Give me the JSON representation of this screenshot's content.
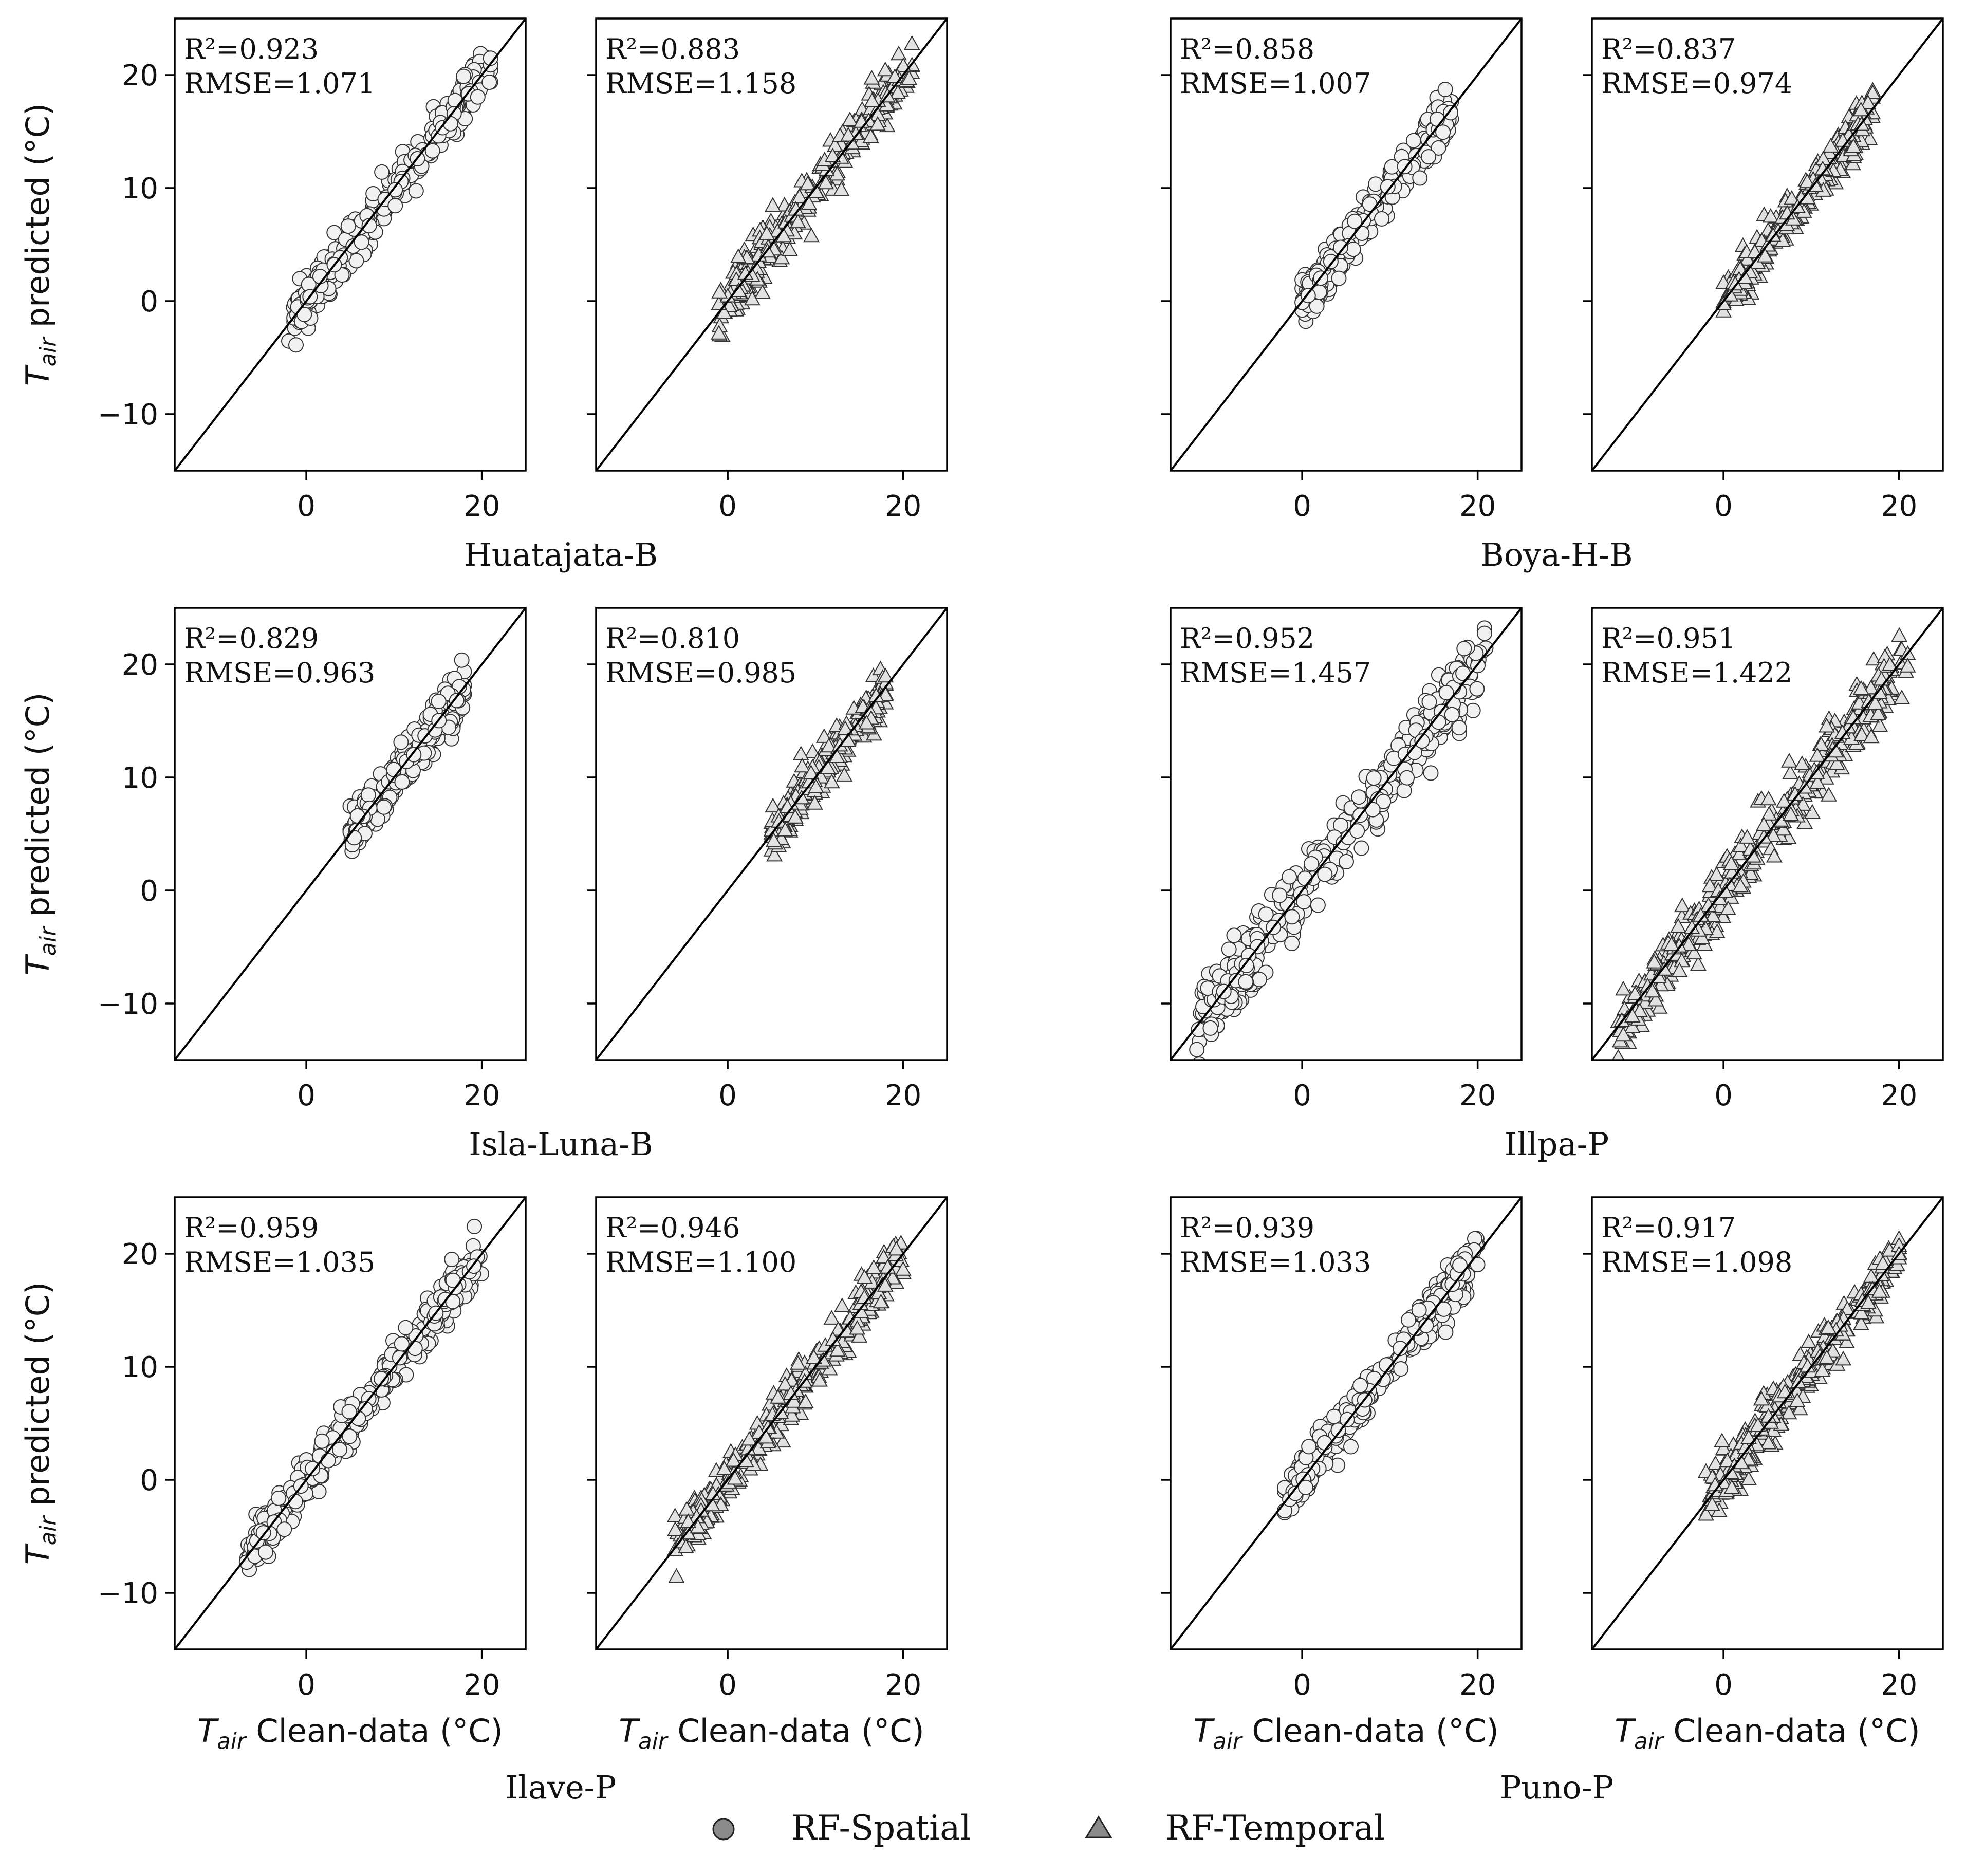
{
  "chart_data": {
    "type": "scatter",
    "axis": {
      "xlim": [
        -15,
        25
      ],
      "ylim": [
        -15,
        25
      ],
      "xticks": [
        0,
        20
      ],
      "yticks": [
        -10,
        0,
        10,
        20
      ],
      "xtick_labels": [
        "0",
        "20"
      ],
      "ytick_labels": [
        "−10",
        "0",
        "10",
        "20"
      ],
      "ylabel_italic": "T",
      "ylabel_sub": "air",
      "ylabel_rest": " predicted (°C)",
      "xlabel_italic": "T",
      "xlabel_sub": "air",
      "xlabel_rest": " Clean-data (°C)",
      "identity_line": "1:1"
    },
    "legend": {
      "position": "bottom-center",
      "entries": [
        {
          "label": "RF-Spatial",
          "marker": "circle"
        },
        {
          "label": "RF-Temporal",
          "marker": "triangle"
        }
      ]
    },
    "stations": [
      {
        "name": "Huatajata-B",
        "spatial": {
          "r2_text": "R²=0.923",
          "rmse_text": "RMSE=1.071",
          "r2": 0.923,
          "rmse": 1.071,
          "x_range": [
            -2,
            21
          ],
          "n": 340
        },
        "temporal": {
          "r2_text": "R²=0.883",
          "rmse_text": "RMSE=1.158",
          "r2": 0.883,
          "rmse": 1.158,
          "x_range": [
            -1,
            21
          ],
          "n": 340
        }
      },
      {
        "name": "Boya-H-B",
        "spatial": {
          "r2_text": "R²=0.858",
          "rmse_text": "RMSE=1.007",
          "r2": 0.858,
          "rmse": 1.007,
          "x_range": [
            0,
            17
          ],
          "n": 320
        },
        "temporal": {
          "r2_text": "R²=0.837",
          "rmse_text": "RMSE=0.974",
          "r2": 0.837,
          "rmse": 0.974,
          "x_range": [
            0,
            17
          ],
          "n": 320
        }
      },
      {
        "name": "Isla-Luna-B",
        "spatial": {
          "r2_text": "R²=0.829",
          "rmse_text": "RMSE=0.963",
          "r2": 0.829,
          "rmse": 0.963,
          "x_range": [
            5,
            18
          ],
          "n": 320
        },
        "temporal": {
          "r2_text": "R²=0.810",
          "rmse_text": "RMSE=0.985",
          "r2": 0.81,
          "rmse": 0.985,
          "x_range": [
            5,
            18
          ],
          "n": 320
        }
      },
      {
        "name": "Illpa-P",
        "spatial": {
          "r2_text": "R²=0.952",
          "rmse_text": "RMSE=1.457",
          "r2": 0.952,
          "rmse": 1.457,
          "x_range": [
            -12,
            21
          ],
          "n": 420
        },
        "temporal": {
          "r2_text": "R²=0.951",
          "rmse_text": "RMSE=1.422",
          "r2": 0.951,
          "rmse": 1.422,
          "x_range": [
            -12,
            21
          ],
          "n": 420
        }
      },
      {
        "name": "Ilave-P",
        "spatial": {
          "r2_text": "R²=0.959",
          "rmse_text": "RMSE=1.035",
          "r2": 0.959,
          "rmse": 1.035,
          "x_range": [
            -7,
            20
          ],
          "n": 380
        },
        "temporal": {
          "r2_text": "R²=0.946",
          "rmse_text": "RMSE=1.100",
          "r2": 0.946,
          "rmse": 1.1,
          "x_range": [
            -6,
            20
          ],
          "n": 380
        }
      },
      {
        "name": "Puno-P",
        "spatial": {
          "r2_text": "R²=0.939",
          "rmse_text": "RMSE=1.033",
          "r2": 0.939,
          "rmse": 1.033,
          "x_range": [
            -2,
            20
          ],
          "n": 380
        },
        "temporal": {
          "r2_text": "R²=0.917",
          "rmse_text": "RMSE=1.098",
          "r2": 0.917,
          "rmse": 1.098,
          "x_range": [
            -2,
            20
          ],
          "n": 380
        }
      }
    ]
  }
}
